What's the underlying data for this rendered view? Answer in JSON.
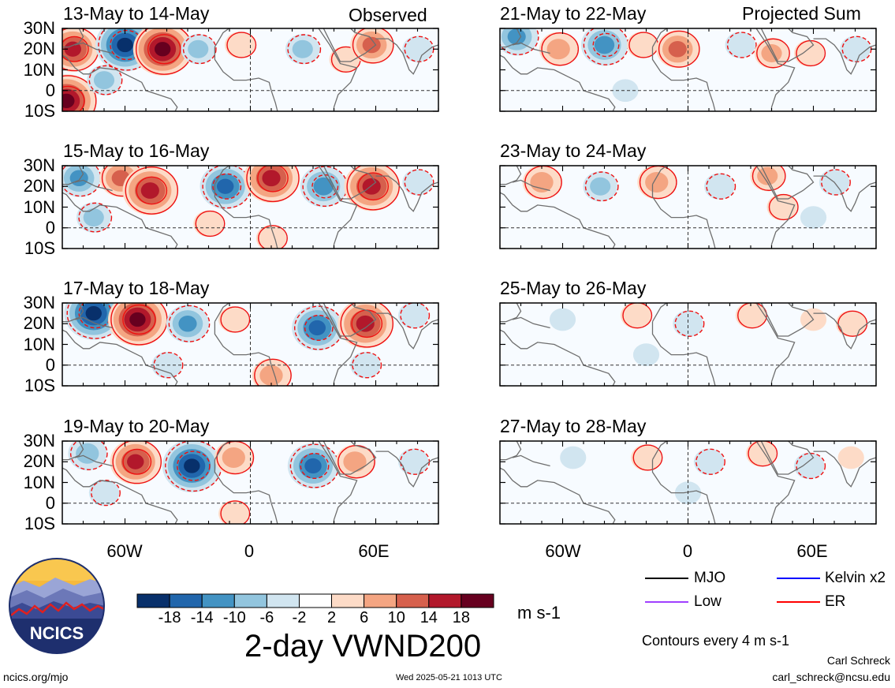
{
  "header": {
    "left_tag": "Observed",
    "right_tag": "Projected Sum"
  },
  "panels": [
    {
      "title": "13-May to 14-May"
    },
    {
      "title": "15-May to 16-May"
    },
    {
      "title": "17-May to 18-May"
    },
    {
      "title": "19-May to 20-May"
    },
    {
      "title": "21-May to 22-May"
    },
    {
      "title": "23-May to 24-May"
    },
    {
      "title": "25-May to 26-May"
    },
    {
      "title": "27-May to 28-May"
    }
  ],
  "axes": {
    "lat_labels": [
      "30N",
      "20N",
      "10N",
      "0",
      "10S"
    ],
    "lon_labels": [
      "60W",
      "0",
      "60E"
    ]
  },
  "colorbar": {
    "ticks": [
      "-18",
      "-14",
      "-10",
      "-6",
      "-2",
      "2",
      "6",
      "10",
      "14",
      "18"
    ],
    "colors": [
      "#08306b",
      "#2166ac",
      "#4393c3",
      "#92c5de",
      "#d1e5f0",
      "#ffffff",
      "#fddbc7",
      "#f4a582",
      "#d6604d",
      "#b2182b",
      "#67001f"
    ],
    "units": "m s-1"
  },
  "legend": {
    "items": [
      {
        "label": "MJO",
        "color": "#000000"
      },
      {
        "label": "Kelvin x2",
        "color": "#0000ff"
      },
      {
        "label": "Low",
        "color": "#a040ff"
      },
      {
        "label": "ER",
        "color": "#ff0000"
      }
    ],
    "contour_note": "Contours every 4 m s-1"
  },
  "footer": {
    "title": "2-day VWND200",
    "site": "ncics.org/mjo",
    "timestamp": "Wed 2025-05-21 1013 UTC",
    "author": "Carl Schreck",
    "email": "carl_schreck@ncsu.edu",
    "logo_text": "NCICS"
  },
  "chart_data": {
    "type": "heatmap",
    "variable": "2-day VWND200",
    "units": "m s-1",
    "domain": {
      "lon_range": [
        -90,
        90
      ],
      "lat_range": [
        -10,
        30
      ]
    },
    "contour_interval": 4,
    "color_levels": [
      -18,
      -14,
      -10,
      -6,
      -2,
      2,
      6,
      10,
      14,
      18
    ],
    "panels": [
      {
        "period": "13-May to 14-May",
        "group": "Observed",
        "features": [
          {
            "lon": -85,
            "lat": 20,
            "v": 14
          },
          {
            "lon": -60,
            "lat": 22,
            "v": -18
          },
          {
            "lon": -42,
            "lat": 20,
            "v": 18
          },
          {
            "lon": -25,
            "lat": 20,
            "v": -6
          },
          {
            "lon": -5,
            "lat": 22,
            "v": 4
          },
          {
            "lon": 25,
            "lat": 20,
            "v": -6
          },
          {
            "lon": 45,
            "lat": 15,
            "v": 4
          },
          {
            "lon": 58,
            "lat": 22,
            "v": 10
          },
          {
            "lon": -88,
            "lat": -5,
            "v": 18
          },
          {
            "lon": -70,
            "lat": 5,
            "v": -6
          },
          {
            "lon": 80,
            "lat": 20,
            "v": -4
          }
        ]
      },
      {
        "period": "15-May to 16-May",
        "group": "Observed",
        "features": [
          {
            "lon": -82,
            "lat": 24,
            "v": -10
          },
          {
            "lon": -62,
            "lat": 24,
            "v": 10
          },
          {
            "lon": -48,
            "lat": 18,
            "v": 16
          },
          {
            "lon": -12,
            "lat": 20,
            "v": -14
          },
          {
            "lon": 10,
            "lat": 24,
            "v": 16
          },
          {
            "lon": 35,
            "lat": 20,
            "v": -12
          },
          {
            "lon": 58,
            "lat": 20,
            "v": 16
          },
          {
            "lon": 80,
            "lat": 22,
            "v": -4
          },
          {
            "lon": -20,
            "lat": 2,
            "v": 4
          },
          {
            "lon": 10,
            "lat": -5,
            "v": 4
          },
          {
            "lon": -75,
            "lat": 5,
            "v": -6
          }
        ]
      },
      {
        "period": "17-May to 18-May",
        "group": "Observed",
        "features": [
          {
            "lon": -75,
            "lat": 25,
            "v": -18
          },
          {
            "lon": -54,
            "lat": 22,
            "v": 18
          },
          {
            "lon": -30,
            "lat": 20,
            "v": -10
          },
          {
            "lon": -8,
            "lat": 22,
            "v": 4
          },
          {
            "lon": 32,
            "lat": 18,
            "v": -14
          },
          {
            "lon": 55,
            "lat": 20,
            "v": 16
          },
          {
            "lon": 78,
            "lat": 24,
            "v": -4
          },
          {
            "lon": 10,
            "lat": -5,
            "v": 8
          },
          {
            "lon": -40,
            "lat": 0,
            "v": -4
          },
          {
            "lon": 55,
            "lat": 0,
            "v": -4
          }
        ]
      },
      {
        "period": "19-May to 20-May",
        "group": "Observed",
        "features": [
          {
            "lon": -78,
            "lat": 24,
            "v": -8
          },
          {
            "lon": -55,
            "lat": 20,
            "v": 14
          },
          {
            "lon": -28,
            "lat": 18,
            "v": -18
          },
          {
            "lon": -8,
            "lat": 22,
            "v": 8
          },
          {
            "lon": 30,
            "lat": 18,
            "v": -14
          },
          {
            "lon": 50,
            "lat": 20,
            "v": 8
          },
          {
            "lon": 78,
            "lat": 20,
            "v": -4
          },
          {
            "lon": -8,
            "lat": -5,
            "v": 4
          },
          {
            "lon": -70,
            "lat": 5,
            "v": -4
          }
        ]
      },
      {
        "period": "21-May to 22-May",
        "group": "Projected Sum",
        "features": [
          {
            "lon": -82,
            "lat": 26,
            "v": -10
          },
          {
            "lon": -62,
            "lat": 20,
            "v": 8
          },
          {
            "lon": -40,
            "lat": 22,
            "v": -12
          },
          {
            "lon": -22,
            "lat": 22,
            "v": 4
          },
          {
            "lon": -5,
            "lat": 20,
            "v": 10
          },
          {
            "lon": 25,
            "lat": 22,
            "v": -4
          },
          {
            "lon": 40,
            "lat": 18,
            "v": 6
          },
          {
            "lon": 58,
            "lat": 18,
            "v": 4
          },
          {
            "lon": 80,
            "lat": 20,
            "v": -4
          },
          {
            "lon": -30,
            "lat": 0,
            "v": -2
          }
        ]
      },
      {
        "period": "23-May to 24-May",
        "group": "Projected Sum",
        "features": [
          {
            "lon": -70,
            "lat": 22,
            "v": 8
          },
          {
            "lon": -42,
            "lat": 20,
            "v": -6
          },
          {
            "lon": -15,
            "lat": 22,
            "v": 8
          },
          {
            "lon": 15,
            "lat": 20,
            "v": -4
          },
          {
            "lon": 38,
            "lat": 25,
            "v": 6
          },
          {
            "lon": 45,
            "lat": 10,
            "v": 4
          },
          {
            "lon": 70,
            "lat": 22,
            "v": -4
          },
          {
            "lon": 60,
            "lat": 5,
            "v": -2
          }
        ]
      },
      {
        "period": "25-May to 26-May",
        "group": "Projected Sum",
        "features": [
          {
            "lon": -60,
            "lat": 22,
            "v": -2
          },
          {
            "lon": -25,
            "lat": 24,
            "v": 4
          },
          {
            "lon": 0,
            "lat": 20,
            "v": -4
          },
          {
            "lon": 30,
            "lat": 24,
            "v": 4
          },
          {
            "lon": 60,
            "lat": 22,
            "v": 2
          },
          {
            "lon": 78,
            "lat": 20,
            "v": 4
          },
          {
            "lon": -20,
            "lat": 5,
            "v": -2
          }
        ]
      },
      {
        "period": "27-May to 28-May",
        "group": "Projected Sum",
        "features": [
          {
            "lon": -55,
            "lat": 22,
            "v": -2
          },
          {
            "lon": -20,
            "lat": 22,
            "v": 4
          },
          {
            "lon": 10,
            "lat": 20,
            "v": -4
          },
          {
            "lon": 35,
            "lat": 24,
            "v": 4
          },
          {
            "lon": 58,
            "lat": 18,
            "v": -4
          },
          {
            "lon": 78,
            "lat": 22,
            "v": 2
          },
          {
            "lon": 0,
            "lat": 5,
            "v": -2
          }
        ]
      }
    ]
  }
}
